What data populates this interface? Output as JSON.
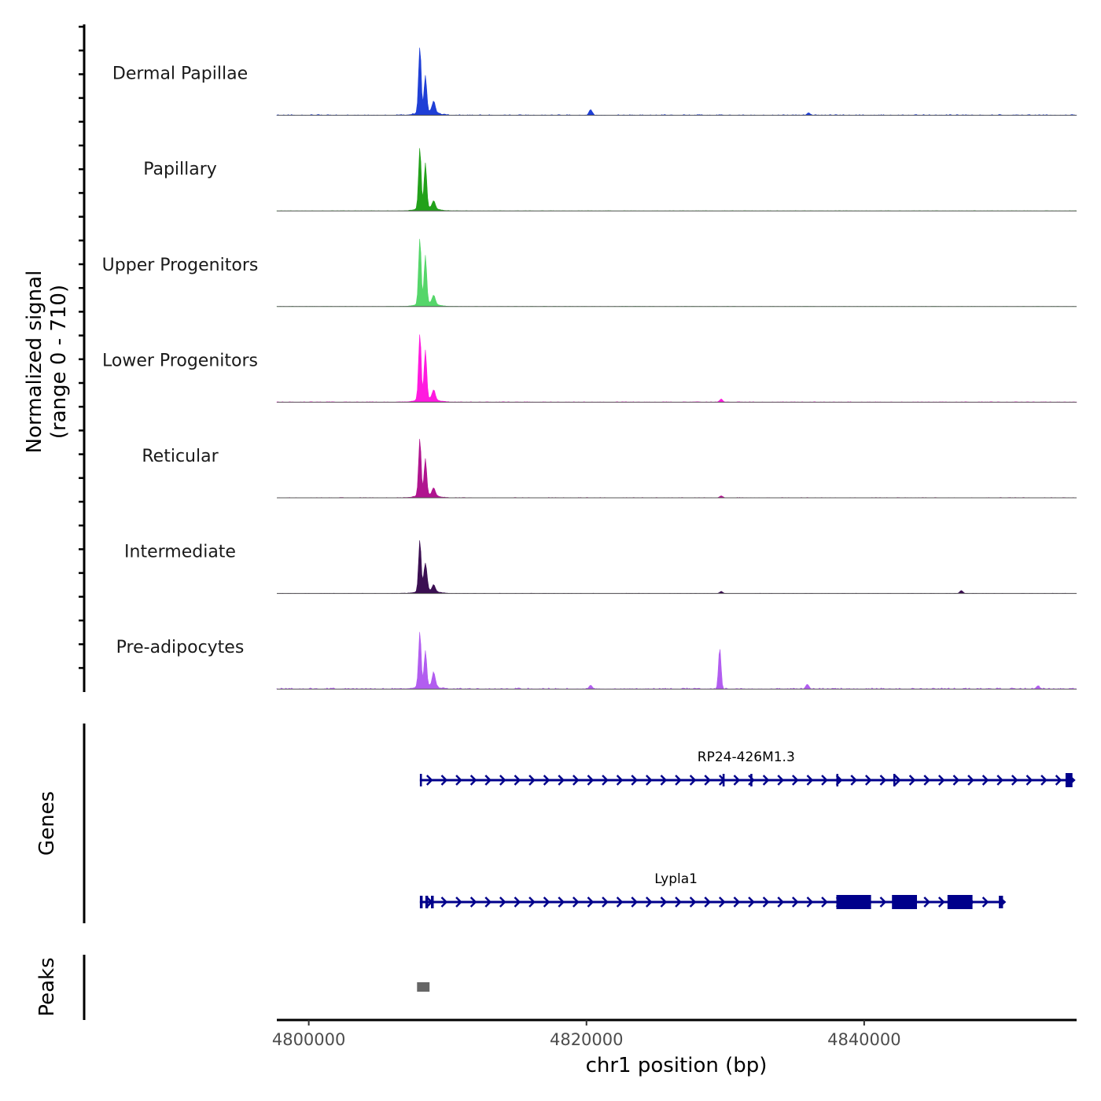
{
  "chart_data": {
    "type": "coverage-track",
    "chromosome": "chr1",
    "region": [
      4797700,
      4855300
    ],
    "signal_range": [
      0,
      710
    ],
    "ylabel_line1": "Normalized signal",
    "ylabel_line2": "(range 0 - 710)",
    "xlabel": "chr1 position (bp)",
    "x_ticks": [
      4800000,
      4820000,
      4840000
    ],
    "x_tick_labels": [
      "4800000",
      "4820000",
      "4840000"
    ],
    "genes_label": "Genes",
    "peaks_label": "Peaks",
    "tracks": [
      {
        "name": "Dermal Papillae",
        "color": "#1f3fd6",
        "peaks": [
          [
            4808000,
            710
          ],
          [
            4808400,
            380
          ],
          [
            4809000,
            120
          ],
          [
            4820300,
            60
          ],
          [
            4836000,
            25
          ]
        ],
        "noise": 8
      },
      {
        "name": "Papillary",
        "color": "#22a11a",
        "peaks": [
          [
            4808000,
            640
          ],
          [
            4808400,
            470
          ],
          [
            4809000,
            80
          ]
        ],
        "noise": 3
      },
      {
        "name": "Upper Progenitors",
        "color": "#55d66a",
        "peaks": [
          [
            4808000,
            700
          ],
          [
            4808400,
            500
          ],
          [
            4809000,
            90
          ]
        ],
        "noise": 3
      },
      {
        "name": "Lower Progenitors",
        "color": "#ff1adf",
        "peaks": [
          [
            4808000,
            710
          ],
          [
            4808400,
            510
          ],
          [
            4809000,
            100
          ],
          [
            4829700,
            30
          ]
        ],
        "noise": 5
      },
      {
        "name": "Reticular",
        "color": "#b0148f",
        "peaks": [
          [
            4808000,
            600
          ],
          [
            4808400,
            380
          ],
          [
            4809000,
            80
          ],
          [
            4829700,
            20
          ]
        ],
        "noise": 4
      },
      {
        "name": "Intermediate",
        "color": "#3b0f52",
        "peaks": [
          [
            4808000,
            540
          ],
          [
            4808400,
            290
          ],
          [
            4809000,
            70
          ],
          [
            4829700,
            20
          ],
          [
            4847000,
            30
          ]
        ],
        "noise": 3
      },
      {
        "name": "Pre-adipocytes",
        "color": "#b25df0",
        "peaks": [
          [
            4808000,
            580
          ],
          [
            4808400,
            370
          ],
          [
            4809000,
            150
          ],
          [
            4829600,
            430
          ],
          [
            4820300,
            40
          ],
          [
            4835900,
            50
          ],
          [
            4852500,
            30
          ]
        ],
        "noise": 12
      }
    ],
    "genes": [
      {
        "name": "RP24-426M1.3",
        "color": "#00008b",
        "start": 4808000,
        "end": 4855000,
        "strand": "+",
        "exons": [
          [
            4808000,
            4808150
          ],
          [
            4829800,
            4829950
          ],
          [
            4831800,
            4831950
          ],
          [
            4838000,
            4838100
          ],
          [
            4842100,
            4842250
          ],
          [
            4854500,
            4855000
          ]
        ]
      },
      {
        "name": "Lypla1",
        "color": "#00008b",
        "start": 4808000,
        "end": 4850000,
        "strand": "+",
        "exons": [
          [
            4808000,
            4808200
          ],
          [
            4808400,
            4808600
          ],
          [
            4808800,
            4809000
          ],
          [
            4838000,
            4840500
          ],
          [
            4842000,
            4843800
          ],
          [
            4846000,
            4847800
          ],
          [
            4849700,
            4850000
          ]
        ]
      }
    ],
    "peaks_regions": [
      [
        4807800,
        4808700
      ]
    ],
    "peak_color": "#666666"
  }
}
